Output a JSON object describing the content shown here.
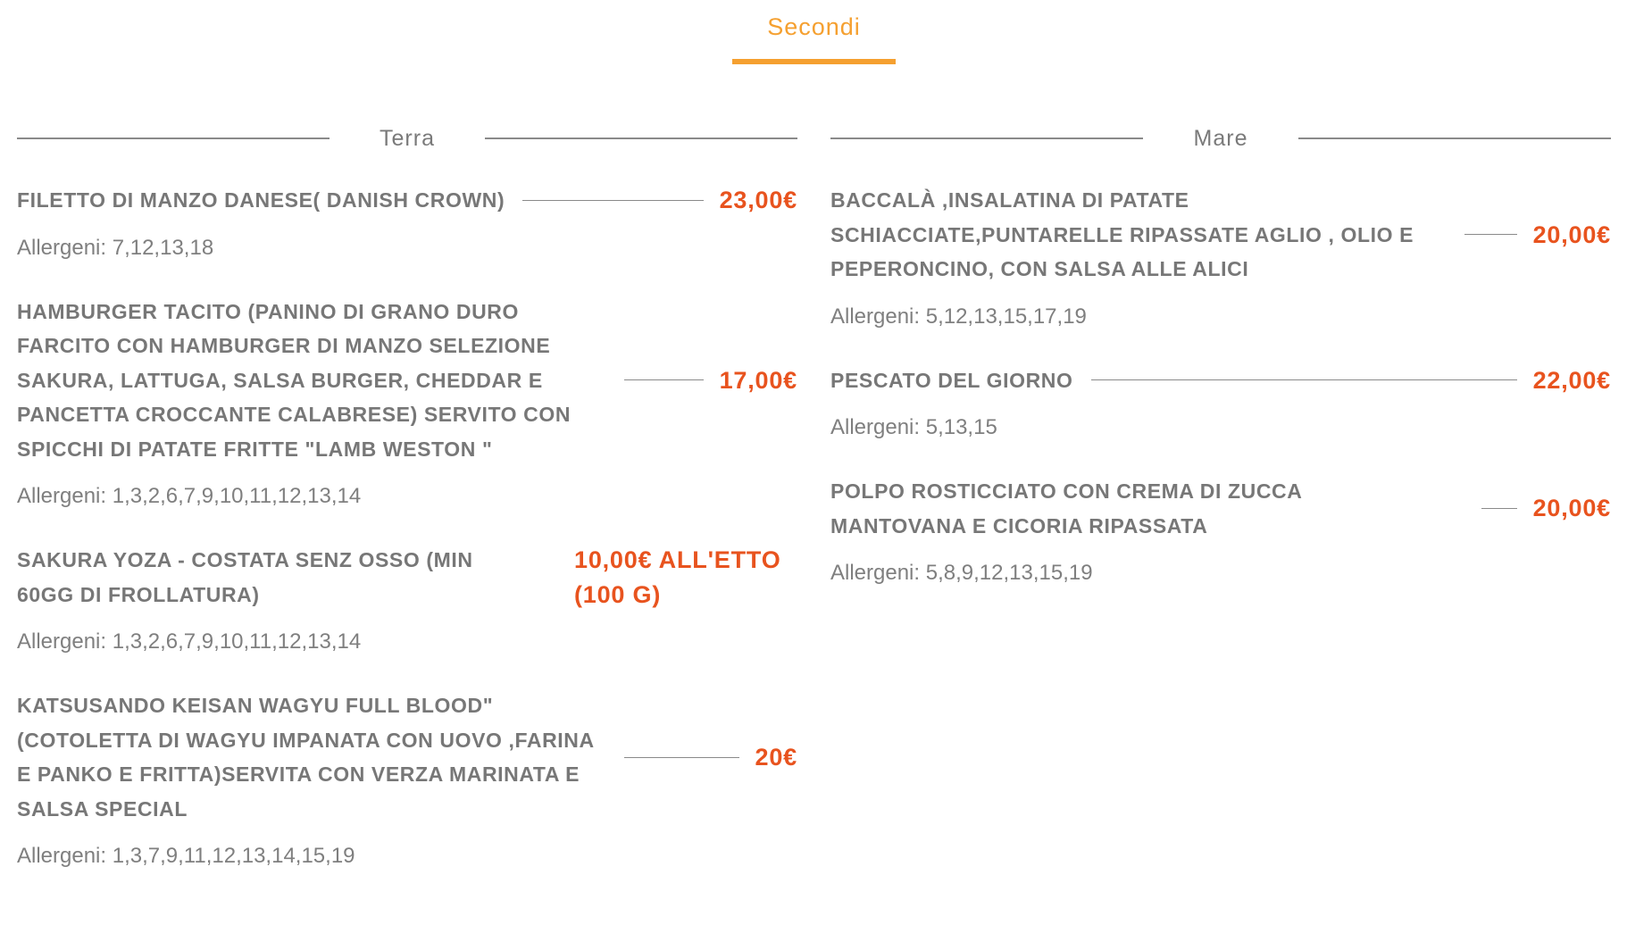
{
  "tab": {
    "label": "Secondi",
    "active": true
  },
  "colors": {
    "accent": "#f5a030",
    "price": "#e8531e",
    "text": "#7a7a7a"
  },
  "sections": [
    {
      "title": "Terra",
      "items": [
        {
          "name": "FILETTO DI MANZO DANESE( DANISH CROWN)",
          "price": "23,00€",
          "allergens": "Allergeni: 7,12,13,18"
        },
        {
          "name": "HAMBURGER TACITO (PANINO DI GRANO DURO FARCITO CON HAMBURGER DI MANZO SELEZIONE SAKURA, LATTUGA, SALSA BURGER, CHEDDAR E PANCETTA CROCCANTE CALABRESE) SERVITO CON SPICCHI DI PATATE FRITTE \"LAMB WESTON \"",
          "price": "17,00€",
          "allergens": "Allergeni: 1,3,2,6,7,9,10,11,12,13,14"
        },
        {
          "name": "SAKURA YOZA - COSTATA SENZ OSSO (MIN 60GG DI FROLLATURA)",
          "price": "10,00€ ALL'ETTO (100 G)",
          "allergens": "Allergeni: 1,3,2,6,7,9,10,11,12,13,14"
        },
        {
          "name": "KATSUSANDO KEISAN WAGYU FULL BLOOD\" (COTOLETTA DI WAGYU IMPANATA CON UOVO ,FARINA E PANKO E FRITTA)SERVITA CON VERZA MARINATA E SALSA SPECIAL",
          "price": "20€",
          "allergens": "Allergeni: 1,3,7,9,11,12,13,14,15,19"
        }
      ]
    },
    {
      "title": "Mare",
      "items": [
        {
          "name": "BACCALÀ ,INSALATINA DI PATATE SCHIACCIATE,PUNTARELLE RIPASSATE AGLIO , OLIO E PEPERONCINO, CON SALSA ALLE ALICI",
          "price": "20,00€",
          "allergens": "Allergeni: 5,12,13,15,17,19"
        },
        {
          "name": "PESCATO DEL GIORNO",
          "price": "22,00€",
          "allergens": "Allergeni: 5,13,15"
        },
        {
          "name": "POLPO ROSTICCIATO CON CREMA DI ZUCCA MANTOVANA E CICORIA RIPASSATA",
          "price": "20,00€",
          "allergens": "Allergeni: 5,8,9,12,13,15,19"
        }
      ]
    }
  ]
}
